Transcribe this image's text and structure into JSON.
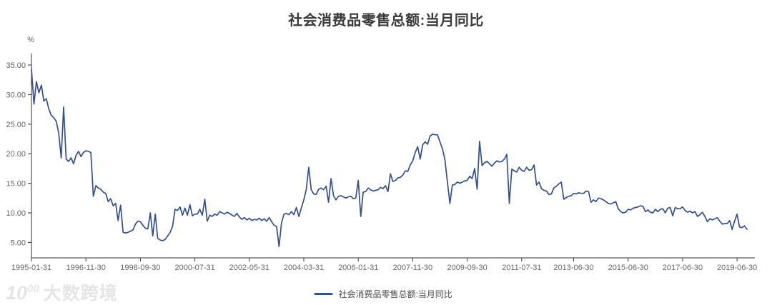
{
  "chart": {
    "title": "社会消费品零售总额:当月同比"
  },
  "legend": {
    "label": "社会消费品零售总额:当月同比"
  },
  "watermark": {
    "logo_base": "10",
    "logo_sup": "00",
    "brand": "大数跨境"
  },
  "chart_data": {
    "type": "line",
    "title": "社会消费品零售总额:当月同比",
    "series_name": "社会消费品零售总额:当月同比",
    "y_unit": "%",
    "ylim": [
      2.4,
      36.9
    ],
    "grid": false,
    "legend_position": "bottom",
    "line_color": "#35508e",
    "axis_color": "#333333",
    "tick_label_color": "#666666",
    "y_ticks": [
      {
        "value": 35,
        "label": "35.00"
      },
      {
        "value": 30,
        "label": "30.00"
      },
      {
        "value": 25,
        "label": "25.00"
      },
      {
        "value": 20,
        "label": "20.00"
      },
      {
        "value": 15,
        "label": "15.00"
      },
      {
        "value": 10,
        "label": "10.00"
      },
      {
        "value": 5,
        "label": "5.00"
      }
    ],
    "x_ticks": [
      "1995-01-31",
      "1996-11-30",
      "1998-09-30",
      "2000-07-31",
      "2002-05-31",
      "2004-03-31",
      "2006-01-31",
      "2007-11-30",
      "2009-09-30",
      "2011-07-31",
      "2013-06-30",
      "2015-06-30",
      "2017-06-30",
      "2019-06-30"
    ],
    "x_tick_indices": [
      0,
      22,
      44,
      66,
      88,
      110,
      132,
      154,
      176,
      198,
      219,
      241,
      263,
      285
    ],
    "frequency_note": "Monthly year-over-year %. 1995-2011 contain all 12 months; 2012-2019 begin in February (Jan-Feb combined); 2019 runs Feb-Oct.",
    "values_by_year": {
      "1995": [
        34.3,
        28.4,
        32.2,
        30.3,
        31.6,
        28.9,
        29.3,
        27.6,
        26.5,
        26.1,
        25.5,
        23.5
      ],
      "1996": [
        19.3,
        27.9,
        19.1,
        18.7,
        19.3,
        18.3,
        19.7,
        20.4,
        19.5,
        20.2,
        20.5,
        20.4
      ],
      "1997": [
        20.2,
        12.8,
        14.6,
        14.2,
        14.0,
        13.5,
        13.3,
        11.9,
        12.4,
        11.2,
        11.6,
        8.7
      ],
      "1998": [
        11.3,
        6.7,
        6.6,
        6.7,
        6.9,
        7.1,
        8.1,
        8.6,
        8.5,
        7.9,
        7.4,
        7.3
      ],
      "1999": [
        10.0,
        6.1,
        9.8,
        5.7,
        5.4,
        5.3,
        5.5,
        6.1,
        6.7,
        7.7,
        10.6,
        10.4
      ],
      "2000": [
        11.0,
        9.6,
        10.8,
        9.6,
        11.4,
        9.5,
        9.8,
        9.8,
        10.6,
        9.6,
        12.3,
        8.6
      ],
      "2001": [
        9.6,
        9.4,
        9.8,
        9.6,
        10.2,
        10.0,
        9.8,
        10.1,
        9.9,
        9.6,
        9.4,
        9.9
      ],
      "2002": [
        9.3,
        8.9,
        9.2,
        8.8,
        9.1,
        8.7,
        8.9,
        8.8,
        9.1,
        8.7,
        9.0,
        8.6
      ],
      "2003": [
        9.2,
        8.5,
        7.9,
        7.7,
        4.3,
        8.3,
        9.8,
        9.9,
        9.7,
        10.2,
        9.7,
        10.9
      ],
      "2004": [
        9.4,
        10.8,
        12.2,
        14.0,
        17.7,
        13.9,
        13.2,
        13.1,
        14.0,
        14.2,
        13.9,
        14.5
      ],
      "2005": [
        11.8,
        15.8,
        12.9,
        12.2,
        12.8,
        12.9,
        12.7,
        12.5,
        12.7,
        12.8,
        12.4,
        12.5
      ],
      "2006": [
        15.5,
        9.4,
        13.5,
        13.6,
        14.2,
        13.9,
        13.7,
        13.8,
        13.9,
        14.3,
        14.1,
        14.6
      ],
      "2007": [
        13.6,
        16.6,
        15.3,
        15.5,
        15.9,
        16.0,
        16.4,
        17.1,
        17.0,
        18.1,
        18.8,
        20.2
      ],
      "2008": [
        21.2,
        19.1,
        21.5,
        22.0,
        21.6,
        23.0,
        23.3,
        23.2,
        23.2,
        22.0,
        20.8,
        19.0
      ],
      "2009": [
        15.2,
        11.6,
        14.7,
        14.8,
        15.2,
        15.0,
        15.2,
        15.4,
        15.5,
        16.2,
        15.8,
        17.5
      ],
      "2010": [
        14.0,
        22.1,
        18.0,
        18.5,
        18.7,
        18.3,
        17.9,
        18.4,
        18.8,
        18.6,
        18.7,
        19.1
      ],
      "2011": [
        19.9,
        11.6,
        17.4,
        17.1,
        16.9,
        17.7,
        17.2,
        17.0,
        17.7,
        17.2,
        17.3,
        18.1
      ],
      "2012": [
        14.7,
        15.2,
        14.1,
        13.8,
        13.7,
        13.1,
        13.2,
        14.2,
        14.5,
        14.9,
        15.2
      ],
      "2013": [
        12.3,
        12.6,
        12.8,
        12.9,
        13.3,
        13.2,
        13.4,
        13.3,
        13.3,
        13.7,
        13.6
      ],
      "2014": [
        11.8,
        12.2,
        11.9,
        12.5,
        12.4,
        12.2,
        11.9,
        11.6,
        11.5,
        11.7,
        11.9
      ],
      "2015": [
        10.7,
        10.2,
        10.0,
        10.1,
        10.6,
        10.5,
        10.8,
        10.9,
        11.0,
        11.2,
        11.1
      ],
      "2016": [
        10.2,
        10.5,
        10.1,
        10.0,
        10.6,
        10.2,
        10.6,
        10.7,
        10.0,
        10.8,
        10.9
      ],
      "2017": [
        9.5,
        10.9,
        10.7,
        10.7,
        11.0,
        10.4,
        10.1,
        10.3,
        10.0,
        10.2,
        9.4
      ],
      "2018": [
        9.7,
        10.1,
        9.4,
        8.5,
        9.0,
        8.8,
        9.0,
        9.2,
        8.6,
        8.1,
        8.2
      ],
      "2019": [
        8.2,
        8.7,
        7.2,
        8.6,
        9.8,
        7.6,
        7.5,
        7.8,
        7.2
      ]
    }
  }
}
